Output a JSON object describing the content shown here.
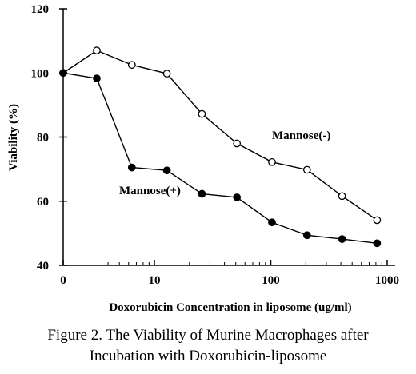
{
  "chart_data": {
    "type": "line",
    "xlabel": "Doxorubicin Concentration in liposome (ug/ml)",
    "ylabel": "Viability (%)",
    "ylim": [
      40,
      120
    ],
    "y_ticks": [
      "40",
      "60",
      "80",
      "100",
      "120"
    ],
    "x_scale": "log",
    "x_ticks": [
      "0",
      "10",
      "100",
      "1000"
    ],
    "grid": false,
    "series": [
      {
        "name": "Mannose(-)",
        "marker": "open-circle",
        "x": [
          0,
          3.2,
          6.4,
          12.8,
          25.6,
          51.2,
          102.4,
          204.8,
          409.6,
          819.2
        ],
        "values": [
          100,
          107,
          102.5,
          99.8,
          87.2,
          78.0,
          72.2,
          69.8,
          61.6,
          54.1
        ]
      },
      {
        "name": "Mannose(+)",
        "marker": "filled-circle",
        "x": [
          0,
          3.2,
          6.4,
          12.8,
          25.6,
          51.2,
          102.4,
          204.8,
          409.6,
          819.2
        ],
        "values": [
          100,
          98.3,
          70.5,
          69.6,
          62.3,
          61.2,
          53.4,
          49.4,
          48.2,
          46.9
        ]
      }
    ]
  },
  "caption": {
    "line1": "Figure 2.  The Viability of  Murine Macrophages after",
    "line2": "Incubation with Doxorubicin-liposome"
  }
}
